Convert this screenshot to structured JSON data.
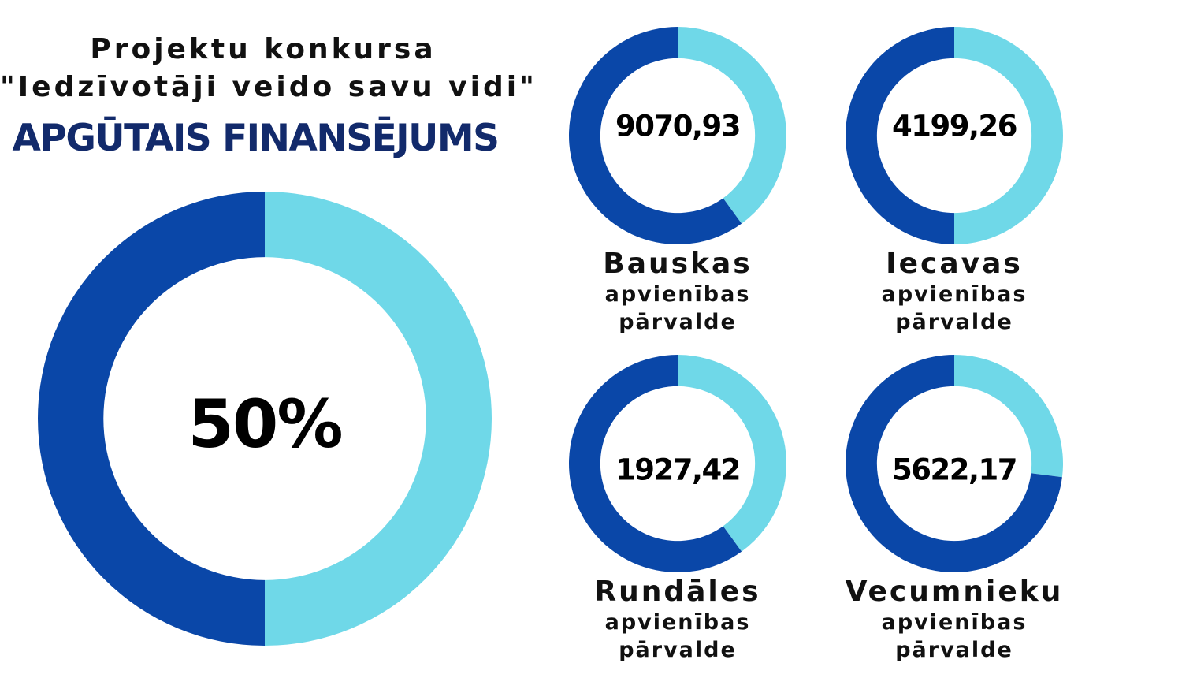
{
  "header": {
    "line1": "Projektu konkursa",
    "line2": "\"Iedzīvotāji veido savu vidi\"",
    "title": "APGŪTAIS FINANSĒJUMS"
  },
  "colors": {
    "dark_blue": "#0a47a8",
    "light_blue": "#6fd8e8",
    "title_navy": "#122a6b"
  },
  "chart_data": [
    {
      "type": "pie",
      "center_label": "50%",
      "slices": [
        {
          "value": 50,
          "color": "#6fd8e8"
        },
        {
          "value": 50,
          "color": "#0a47a8"
        }
      ]
    },
    {
      "type": "pie",
      "center_label": "9070,93",
      "name": "Bauskas",
      "subname_line1": "apvienības",
      "subname_line2": "pārvalde",
      "slices": [
        {
          "value": 40,
          "color": "#6fd8e8"
        },
        {
          "value": 60,
          "color": "#0a47a8"
        }
      ]
    },
    {
      "type": "pie",
      "center_label": "4199,26",
      "name": "Iecavas",
      "subname_line1": "apvienības",
      "subname_line2": "pārvalde",
      "slices": [
        {
          "value": 50,
          "color": "#6fd8e8"
        },
        {
          "value": 50,
          "color": "#0a47a8"
        }
      ]
    },
    {
      "type": "pie",
      "center_label": "1927,42",
      "name": "Rundāles",
      "subname_line1": "apvienības",
      "subname_line2": "pārvalde",
      "slices": [
        {
          "value": 40,
          "color": "#6fd8e8"
        },
        {
          "value": 60,
          "color": "#0a47a8"
        }
      ]
    },
    {
      "type": "pie",
      "center_label": "5622,17",
      "name": "Vecumnieku",
      "subname_line1": "apvienības",
      "subname_line2": "pārvalde",
      "slices": [
        {
          "value": 27,
          "color": "#6fd8e8"
        },
        {
          "value": 73,
          "color": "#0a47a8"
        }
      ]
    }
  ]
}
